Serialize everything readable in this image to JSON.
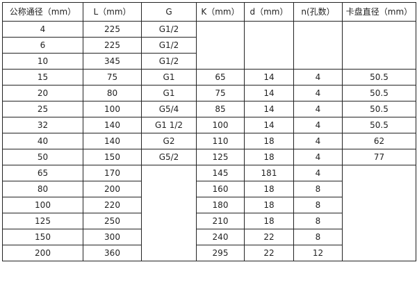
{
  "headers": [
    "公称通径（mm）",
    "L（mm）",
    "G",
    "K（mm）",
    "d（mm）",
    "n(孔数）",
    "卡盘直径（mm）"
  ],
  "rows": [
    [
      "4",
      "225",
      "G1/2",
      "",
      "",
      "",
      ""
    ],
    [
      "6",
      "225",
      "G1/2"
    ],
    [
      "10",
      "345",
      "G1/2"
    ],
    [
      "15",
      "75",
      "G1",
      "65",
      "14",
      "4",
      "50.5"
    ],
    [
      "20",
      "80",
      "G1",
      "75",
      "14",
      "4",
      "50.5"
    ],
    [
      "25",
      "100",
      "G5/4",
      "85",
      "14",
      "4",
      "50.5"
    ],
    [
      "32",
      "140",
      "G1  1/2",
      "100",
      "14",
      "4",
      "50.5"
    ],
    [
      "40",
      "140",
      "G2",
      "110",
      "18",
      "4",
      "62"
    ],
    [
      "50",
      "150",
      "G5/2",
      "125",
      "18",
      "4",
      "77"
    ],
    [
      "65",
      "170",
      "",
      "145",
      "181",
      "4",
      ""
    ],
    [
      "80",
      "200",
      "160",
      "18",
      "8"
    ],
    [
      "100",
      "220",
      "180",
      "18",
      "8"
    ],
    [
      "125",
      "250",
      "210",
      "18",
      "8"
    ],
    [
      "150",
      "300",
      "240",
      "22",
      "8"
    ],
    [
      "200",
      "360",
      "295",
      "22",
      "12"
    ]
  ]
}
